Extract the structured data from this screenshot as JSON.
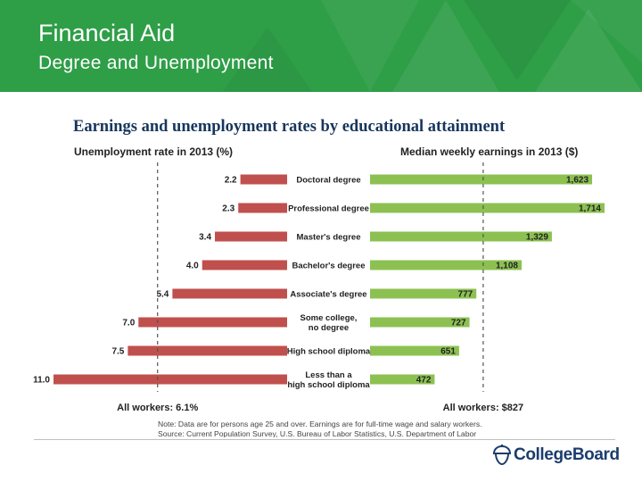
{
  "header": {
    "title": "Financial Aid",
    "subtitle": "Degree and Unemployment"
  },
  "colors": {
    "banner": "#2e9e47",
    "unemployment_bar": "#c0504d",
    "earnings_bar": "#8cc152",
    "heading": "#17365d"
  },
  "chart_data": {
    "type": "bar",
    "title": "Earnings and unemployment rates by educational attainment",
    "categories": [
      "Doctoral degree",
      "Professional degree",
      "Master's degree",
      "Bachelor's degree",
      "Associate's degree",
      "Some college, no degree",
      "High school diploma",
      "Less than a high school diploma"
    ],
    "category_lines": [
      [
        "Doctoral degree"
      ],
      [
        "Professional degree"
      ],
      [
        "Master's degree"
      ],
      [
        "Bachelor's degree"
      ],
      [
        "Associate's degree"
      ],
      [
        "Some college,",
        "no degree"
      ],
      [
        "High school diploma"
      ],
      [
        "Less than a",
        "high school diploma"
      ]
    ],
    "series": [
      {
        "name": "Unemployment rate in 2013 (%)",
        "values": [
          2.2,
          2.3,
          3.4,
          4.0,
          5.4,
          7.0,
          7.5,
          11.0
        ],
        "labels": [
          "2.2",
          "2.3",
          "3.4",
          "4.0",
          "5.4",
          "7.0",
          "7.5",
          "11.0"
        ],
        "average": 6.1,
        "average_label": "All workers: 6.1%",
        "direction": "left"
      },
      {
        "name": "Median weekly earnings in 2013 ($)",
        "values": [
          1623,
          1714,
          1329,
          1108,
          777,
          727,
          651,
          472
        ],
        "labels": [
          "1,623",
          "1,714",
          "1,329",
          "1,108",
          "777",
          "727",
          "651",
          "472"
        ],
        "average": 827,
        "average_label": "All workers: $827",
        "direction": "right"
      }
    ],
    "note": "Note: Data are for persons age 25 and over. Earnings are for full-time wage and salary workers.",
    "source": "Source: Current Population Survey, U.S. Bureau of Labor Statistics, U.S. Department of Labor"
  },
  "footer": {
    "logo_text": "CollegeBoard"
  }
}
